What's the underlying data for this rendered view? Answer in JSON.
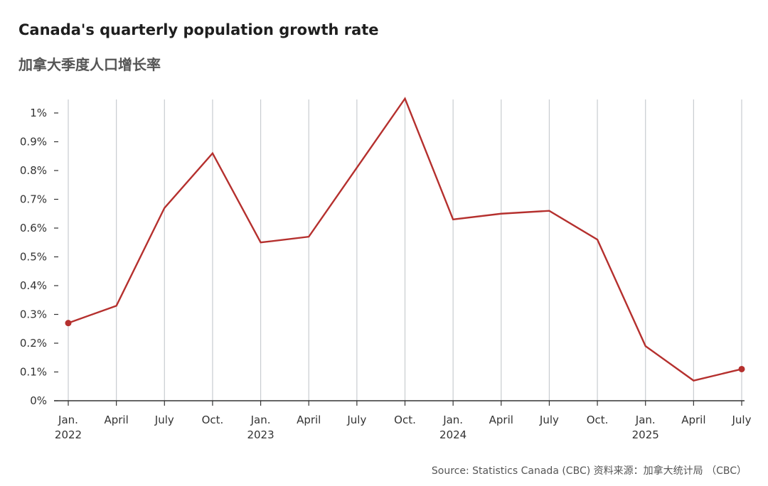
{
  "title": "Canada's quarterly population growth rate",
  "subtitle": "加拿大季度人口增长率",
  "source": "Source: Statistics Canada (CBC)  资料来源：加拿大统计局 （CBC）",
  "colors": {
    "line": "#b5302e",
    "grid": "#c8ccd0",
    "axis": "#333333"
  },
  "chart_data": {
    "type": "line",
    "title": "Canada's quarterly population growth rate",
    "subtitle": "加拿大季度人口增长率",
    "xlabel": "",
    "ylabel": "",
    "ylim": [
      0,
      1.05
    ],
    "y_ticks": [
      {
        "value": 0,
        "label": "0%"
      },
      {
        "value": 0.1,
        "label": "0.1%"
      },
      {
        "value": 0.2,
        "label": "0.2%"
      },
      {
        "value": 0.3,
        "label": "0.3%"
      },
      {
        "value": 0.4,
        "label": "0.4%"
      },
      {
        "value": 0.5,
        "label": "0.5%"
      },
      {
        "value": 0.6,
        "label": "0.6%"
      },
      {
        "value": 0.7,
        "label": "0.7%"
      },
      {
        "value": 0.8,
        "label": "0.8%"
      },
      {
        "value": 0.9,
        "label": "0.9%"
      },
      {
        "value": 1.0,
        "label": "1%"
      }
    ],
    "categories": [
      {
        "label": "Jan.",
        "year": "2022"
      },
      {
        "label": "April",
        "year": ""
      },
      {
        "label": "July",
        "year": ""
      },
      {
        "label": "Oct.",
        "year": ""
      },
      {
        "label": "Jan.",
        "year": "2023"
      },
      {
        "label": "April",
        "year": ""
      },
      {
        "label": "July",
        "year": ""
      },
      {
        "label": "Oct.",
        "year": ""
      },
      {
        "label": "Jan.",
        "year": "2024"
      },
      {
        "label": "April",
        "year": ""
      },
      {
        "label": "July",
        "year": ""
      },
      {
        "label": "Oct.",
        "year": ""
      },
      {
        "label": "Jan.",
        "year": "2025"
      },
      {
        "label": "April",
        "year": ""
      },
      {
        "label": "July",
        "year": ""
      }
    ],
    "series": [
      {
        "name": "Quarterly population growth rate",
        "values": [
          0.27,
          0.33,
          0.67,
          0.86,
          0.55,
          0.57,
          0.81,
          1.05,
          0.63,
          0.65,
          0.66,
          0.56,
          0.19,
          0.07,
          0.11
        ],
        "endpoint_markers": true
      }
    ],
    "grid": true,
    "legend": "none"
  }
}
